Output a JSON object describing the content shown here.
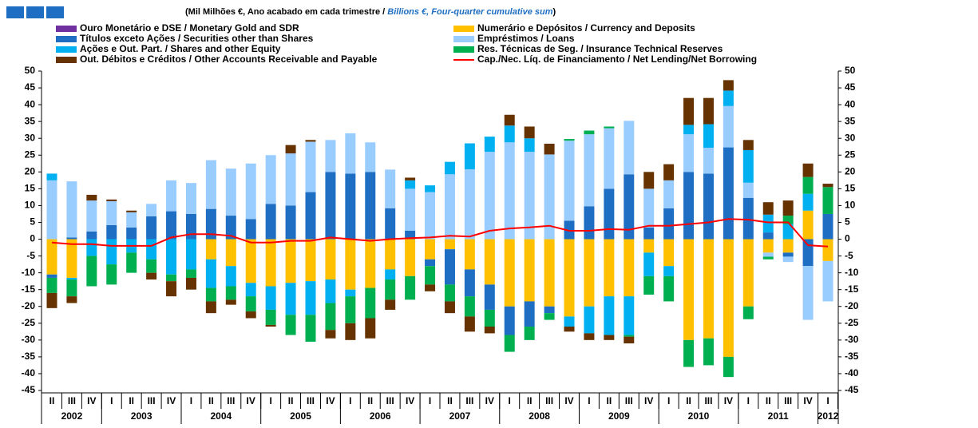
{
  "chart_data": {
    "type": "bar",
    "subtitle": "(Mil Milhões €, Ano acabado em cada trimestre  / ",
    "subtitle_en": "Billions €, Four-quarter cumulative sum",
    "subtitle_end": ")",
    "categories": [
      "II",
      "III",
      "IV",
      "I",
      "II",
      "III",
      "IV",
      "I",
      "II",
      "III",
      "IV",
      "I",
      "II",
      "III",
      "IV",
      "I",
      "II",
      "III",
      "IV",
      "I",
      "II",
      "III",
      "IV",
      "I",
      "II",
      "III",
      "IV",
      "I",
      "II",
      "III",
      "IV",
      "I",
      "II",
      "III",
      "IV",
      "I",
      "II",
      "III",
      "IV",
      "I"
    ],
    "years": [
      "2002",
      "2003",
      "2004",
      "2005",
      "2006",
      "2007",
      "2008",
      "2009",
      "2010",
      "2011",
      "2012"
    ],
    "ylim": [
      -45,
      50
    ],
    "yticks": [
      -45,
      -40,
      -35,
      -30,
      -25,
      -20,
      -15,
      -10,
      -5,
      0,
      5,
      10,
      15,
      20,
      25,
      30,
      35,
      40,
      45,
      50
    ],
    "series": [
      {
        "name": "Ouro Monetário e DSE / Monetary Gold and SDR",
        "color": "#7030A0",
        "type": "bar",
        "values": [
          0,
          0,
          0,
          0,
          0,
          0,
          0,
          0,
          0,
          0,
          0,
          0,
          0,
          0,
          0,
          0,
          0,
          0,
          0,
          0,
          0,
          0,
          0,
          0,
          0,
          0,
          0,
          0,
          0,
          0,
          0,
          0,
          0,
          0,
          0,
          0,
          0,
          0,
          0,
          0
        ]
      },
      {
        "name": "Numerário e Depósitos / Currency and Deposits",
        "color": "#FFC000",
        "type": "bar",
        "values": [
          -10.5,
          -11.5,
          0,
          0,
          0,
          0,
          0,
          0,
          -6,
          -8,
          -13,
          -14,
          -13,
          -12.5,
          -12,
          -15,
          -14.5,
          -9,
          -11,
          -6,
          -3,
          -9,
          -13.5,
          -20,
          -18.5,
          -20,
          -23,
          -20,
          -17,
          -17,
          -4,
          -8,
          -30,
          -29.5,
          -35,
          -20,
          -4,
          -4,
          8.5,
          -6.5
        ]
      },
      {
        "name": "Títulos exceto Ações / Securities other than Shares",
        "color": "#1E6EC3",
        "type": "bar",
        "values": [
          -1,
          0.5,
          2.3,
          4.2,
          3.5,
          6.8,
          8.3,
          7.5,
          9,
          7,
          6,
          10.5,
          10,
          14,
          20,
          19.5,
          20,
          9.2,
          2.5,
          -2,
          -10.5,
          -8,
          -7.5,
          -8.5,
          -7.5,
          -2,
          5.5,
          9.8,
          15,
          19.3,
          3.5,
          9.2,
          20,
          19.5,
          27.3,
          12.3,
          2,
          -1.2,
          -8,
          7.5
        ]
      },
      {
        "name": "Empréstimos / Loans",
        "color": "#99CCFF",
        "type": "bar",
        "values": [
          17.5,
          16.7,
          9.2,
          7.1,
          4.5,
          3.7,
          9.2,
          9.2,
          14.5,
          14,
          16.5,
          14.5,
          15.5,
          15,
          9.5,
          12,
          8.8,
          11.5,
          12.5,
          14,
          19.3,
          20.8,
          26,
          28.8,
          26,
          25.2,
          23.8,
          21.4,
          18,
          15.9,
          11.5,
          8.3,
          11.2,
          7.7,
          12.3,
          4.5,
          -1.2,
          -1.6,
          -16,
          -12
        ]
      },
      {
        "name": "Ações e Out. Part. / Shares and other Equity",
        "color": "#00B0F0",
        "type": "bar",
        "values": [
          2,
          -0.5,
          -5,
          -7.5,
          -4,
          -6,
          -10.5,
          -9,
          -8.5,
          -6,
          -4,
          -7,
          -9.5,
          -10,
          -7,
          -2,
          0,
          -3,
          2.5,
          2,
          3.7,
          7.7,
          4.5,
          5,
          4,
          0,
          -3,
          -8,
          -11.5,
          -11.5,
          -7,
          -3,
          2.8,
          7,
          4.6,
          9.7,
          5.3,
          4.5,
          5,
          0
        ]
      },
      {
        "name": "Res. Técnicas de Seg. / Insurance Technical Reserves",
        "color": "#00B050",
        "type": "bar",
        "values": [
          -4.5,
          -5,
          -9,
          -6,
          -6,
          -4,
          -2,
          -2.5,
          -4,
          -4,
          -4.5,
          -4.5,
          -6,
          -8,
          -8,
          -8,
          -9,
          -6,
          -7,
          -5.5,
          -5,
          -6,
          -5,
          -5,
          -4,
          -2,
          0.5,
          1.1,
          0.5,
          -0.5,
          -5.5,
          -7.5,
          -8,
          -8,
          -6,
          -3.8,
          -0.8,
          2.5,
          5,
          8
        ]
      },
      {
        "name": "Out. Débitos e Créditos / Other Accounts Receivable and Payable",
        "color": "#663300",
        "type": "bar",
        "values": [
          -4.5,
          -2,
          1.7,
          0.5,
          0.5,
          -2,
          -4.5,
          -3.5,
          -3.5,
          -1.5,
          -2,
          -0.5,
          2.5,
          0.5,
          -2.5,
          -5,
          -6,
          -3,
          0.8,
          -2,
          -3.5,
          -4.5,
          -2,
          3.2,
          3.5,
          3.2,
          -1.5,
          -2,
          -1.5,
          -2,
          5,
          4.8,
          8,
          7.8,
          3.1,
          3,
          3.7,
          4.5,
          4,
          1
        ]
      },
      {
        "name": "Cap./Nec. Líq. de Financiamento / Net Lending/Net Borrowing",
        "color": "#FF0000",
        "type": "line",
        "values": [
          -1,
          -1.5,
          -1.5,
          -2,
          -2,
          -2,
          0.5,
          1.5,
          1.5,
          1,
          -1,
          -1,
          -0.5,
          -0.5,
          0.5,
          0,
          -0.5,
          0,
          0.3,
          0.5,
          1,
          0.8,
          2.5,
          3.2,
          3.5,
          4,
          2.5,
          2.5,
          3,
          2.8,
          4,
          4,
          4.5,
          5,
          6,
          5.8,
          5,
          5,
          -1.8,
          -2.2
        ]
      }
    ]
  }
}
